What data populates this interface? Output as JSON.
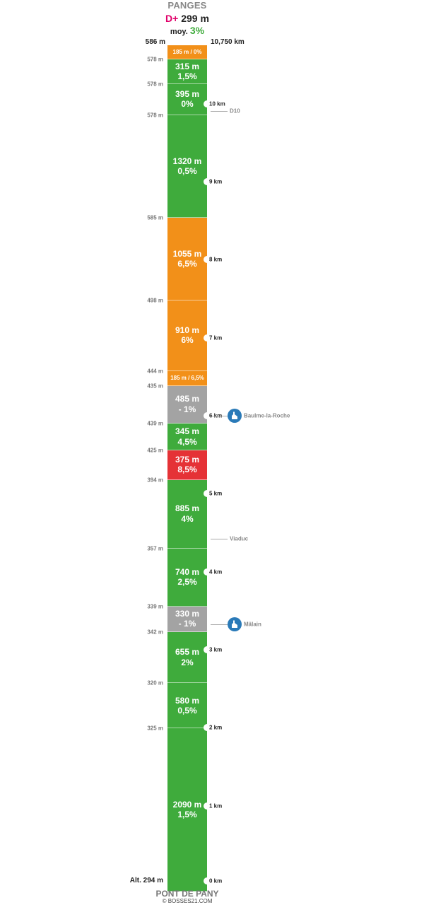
{
  "header": {
    "title": "PANGES",
    "dplus_prefix": "D+",
    "dplus_value": "299 m",
    "moy_label": "moy.",
    "moy_value": "3%"
  },
  "top_altitude": "586 m",
  "top_distance": "10,750 km",
  "bottom_altitude": "Alt. 294 m",
  "footer": {
    "start_name": "PONT DE PANY",
    "credit": "© BOSSES21.COM"
  },
  "colors": {
    "green": "#3fab3c",
    "orange": "#f29019",
    "grey": "#a3a3a3",
    "red": "#e53236",
    "dplus": "#e0006a",
    "poi_icon": "#2a7ab8"
  },
  "chart_data": {
    "type": "bar",
    "orientation": "vertical-profile",
    "total_distance_km": 10.75,
    "segments": [
      {
        "length_label": "185 m / 0%",
        "length_m": 185,
        "gradient_pct": 0,
        "color": "orange",
        "compact": true,
        "alt_label_below": "578 m"
      },
      {
        "length_label": "315 m",
        "gradient_label": "1,5%",
        "length_m": 315,
        "gradient_pct": 1.5,
        "color": "green",
        "alt_label_below": "578 m"
      },
      {
        "length_label": "395 m",
        "gradient_label": "0%",
        "length_m": 395,
        "gradient_pct": 0,
        "color": "green",
        "alt_label_below": "578 m"
      },
      {
        "length_label": "1320 m",
        "gradient_label": "0,5%",
        "length_m": 1320,
        "gradient_pct": 0.5,
        "color": "green",
        "alt_label_below": "585 m"
      },
      {
        "length_label": "1055 m",
        "gradient_label": "6,5%",
        "length_m": 1055,
        "gradient_pct": 6.5,
        "color": "orange",
        "alt_label_below": "498 m"
      },
      {
        "length_label": "910 m",
        "gradient_label": "6%",
        "length_m": 910,
        "gradient_pct": 6,
        "color": "orange",
        "alt_label_below": "444 m"
      },
      {
        "length_label": "185 m / 6,5%",
        "length_m": 185,
        "gradient_pct": 6.5,
        "color": "orange",
        "compact": true,
        "alt_label_below": "435 m"
      },
      {
        "length_label": "485 m",
        "gradient_label": "- 1%",
        "length_m": 485,
        "gradient_pct": -1,
        "color": "grey",
        "alt_label_below": "439 m"
      },
      {
        "length_label": "345 m",
        "gradient_label": "4,5%",
        "length_m": 345,
        "gradient_pct": 4.5,
        "color": "green",
        "alt_label_below": "425 m"
      },
      {
        "length_label": "375 m",
        "gradient_label": "8,5%",
        "length_m": 375,
        "gradient_pct": 8.5,
        "color": "red",
        "alt_label_below": "394 m"
      },
      {
        "length_label": "885 m",
        "gradient_label": "4%",
        "length_m": 885,
        "gradient_pct": 4,
        "color": "green",
        "alt_label_below": "357 m"
      },
      {
        "length_label": "740 m",
        "gradient_label": "2,5%",
        "length_m": 740,
        "gradient_pct": 2.5,
        "color": "green",
        "alt_label_below": "339 m"
      },
      {
        "length_label": "330 m",
        "gradient_label": "- 1%",
        "length_m": 330,
        "gradient_pct": -1,
        "color": "grey",
        "alt_label_below": "342 m"
      },
      {
        "length_label": "655 m",
        "gradient_label": "2%",
        "length_m": 655,
        "gradient_pct": 2,
        "color": "green",
        "alt_label_below": "320 m"
      },
      {
        "length_label": "580 m",
        "gradient_label": "0,5%",
        "length_m": 580,
        "gradient_pct": 0.5,
        "color": "green",
        "alt_label_below": "325 m"
      },
      {
        "length_label": "2090 m",
        "gradient_label": "1,5%",
        "length_m": 2090,
        "gradient_pct": 1.5,
        "color": "green"
      }
    ],
    "km_markers": [
      {
        "km": 10,
        "label": "10 km"
      },
      {
        "km": 9,
        "label": "9 km"
      },
      {
        "km": 8,
        "label": "8 km"
      },
      {
        "km": 7,
        "label": "7 km"
      },
      {
        "km": 6,
        "label": "6 km"
      },
      {
        "km": 5,
        "label": "5 km"
      },
      {
        "km": 4,
        "label": "4 km"
      },
      {
        "km": 3,
        "label": "3 km"
      },
      {
        "km": 2,
        "label": "2 km"
      },
      {
        "km": 1,
        "label": "1 km"
      },
      {
        "km": 0,
        "label": "0 km"
      }
    ],
    "pois": [
      {
        "label": "D10",
        "km": 9.91,
        "icon": "none"
      },
      {
        "label": "Baulme-la-Roche",
        "km": 6.0,
        "icon": "church-icon"
      },
      {
        "label": "Viaduc",
        "km": 4.42,
        "icon": "none"
      },
      {
        "label": "Mâlain",
        "km": 3.33,
        "icon": "church-icon"
      }
    ]
  }
}
